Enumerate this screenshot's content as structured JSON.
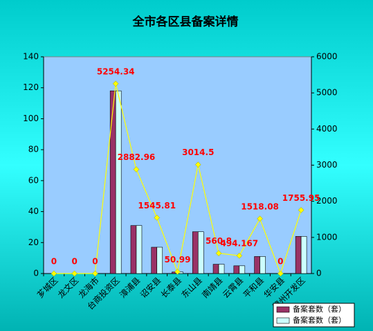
{
  "chart_data": {
    "type": "combo",
    "title": "全市各区县备案详情",
    "categories": [
      "芗城区",
      "龙文区",
      "龙海市",
      "台商投资区",
      "漳浦县",
      "诏安县",
      "长泰县",
      "东山县",
      "南靖县",
      "云霄县",
      "平和县",
      "华安县",
      "漳州开发区"
    ],
    "series": [
      {
        "name": "备案套数（套）",
        "type": "bar",
        "color": "#993366",
        "values": [
          0,
          0,
          0,
          118,
          31,
          17,
          1,
          27,
          6,
          5,
          11,
          0,
          24
        ]
      },
      {
        "name": "备案套数（套）",
        "type": "bar",
        "color": "#ccffff",
        "values": [
          0,
          0,
          0,
          118,
          31,
          17,
          1,
          27,
          6,
          5,
          11,
          0,
          24
        ]
      },
      {
        "type": "line",
        "axis": "y2",
        "color": "#ffff00",
        "label_color": "#ff0000",
        "values": [
          0,
          0,
          0,
          5254.34,
          2882.96,
          1545.81,
          50.99,
          3014.5,
          560.8,
          494.167,
          1518.08,
          0,
          1755.95
        ]
      }
    ],
    "ylim": [
      0,
      140
    ],
    "yticks": [
      0,
      20,
      40,
      60,
      80,
      100,
      120,
      140
    ],
    "y2lim": [
      0,
      6000
    ],
    "y2ticks": [
      0,
      1000,
      2000,
      3000,
      4000,
      5000,
      6000
    ],
    "legend": "bottom-right",
    "grid": false
  }
}
